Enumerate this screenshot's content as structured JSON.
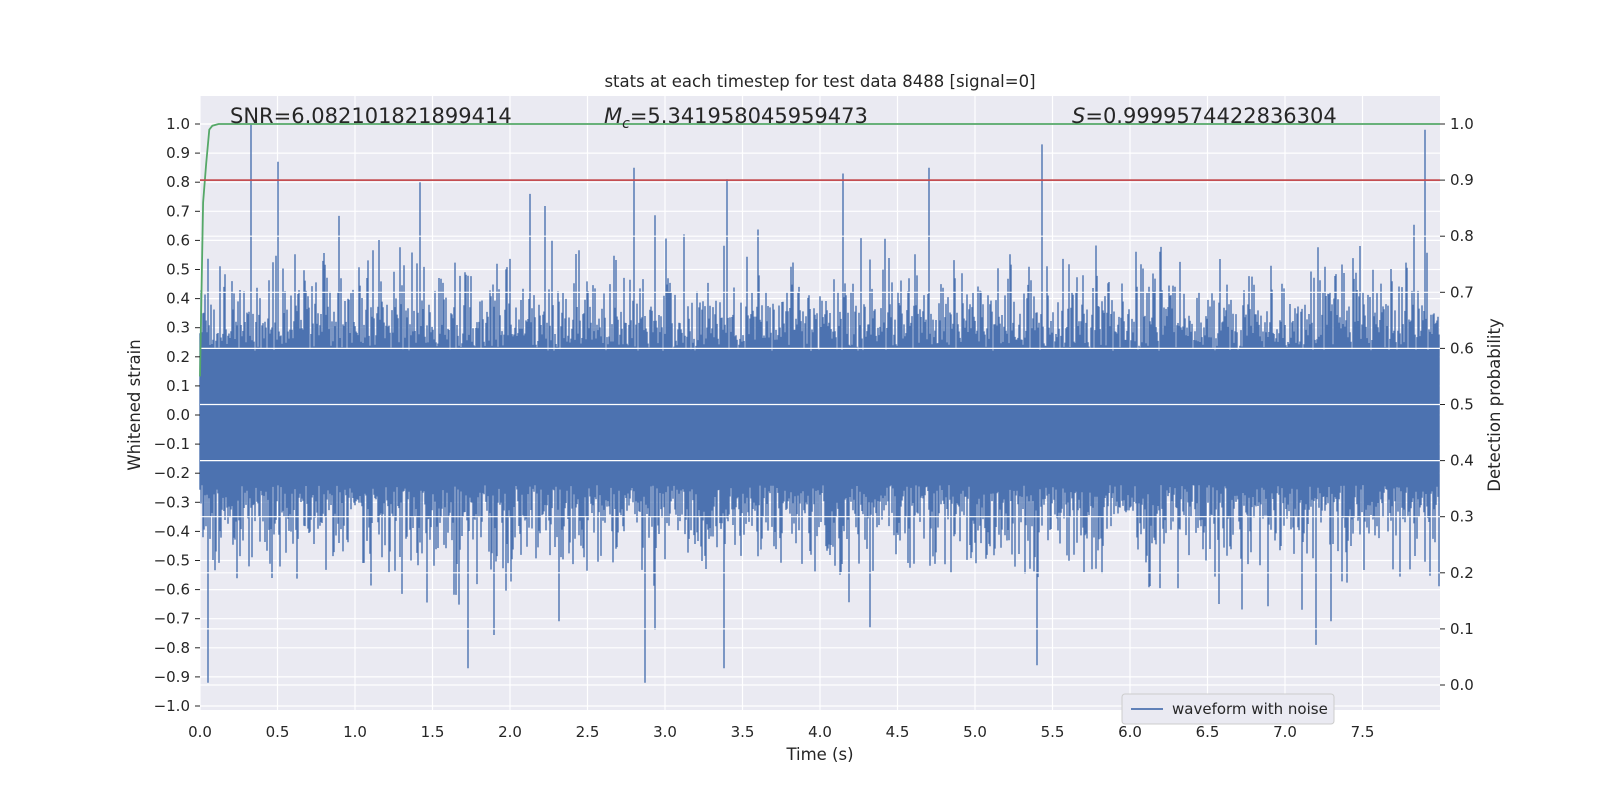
{
  "chart_data": {
    "type": "line",
    "title": "stats at each timestep for test data 8488 [signal=0]",
    "xlabel": "Time (s)",
    "ylabel": "Whitened strain",
    "y2label": "Detection probability",
    "xlim": [
      0.0,
      8.0
    ],
    "ylim": [
      -1.02,
      1.1
    ],
    "y2lim": [
      -0.05,
      1.05
    ],
    "x_ticks": [
      "0.0",
      "0.5",
      "1.0",
      "1.5",
      "2.0",
      "2.5",
      "3.0",
      "3.5",
      "4.0",
      "4.5",
      "5.0",
      "5.5",
      "6.0",
      "6.5",
      "7.0",
      "7.5"
    ],
    "y_ticks": [
      "1.0",
      "0.9",
      "0.8",
      "0.7",
      "0.6",
      "0.5",
      "0.4",
      "0.3",
      "0.2",
      "0.1",
      "0.0",
      "−0.1",
      "−0.2",
      "−0.3",
      "−0.4",
      "−0.5",
      "−0.6",
      "−0.7",
      "−0.8",
      "−0.9",
      "−1.0"
    ],
    "y2_ticks": [
      "1.0",
      "0.9",
      "0.8",
      "0.7",
      "0.6",
      "0.5",
      "0.4",
      "0.3",
      "0.2",
      "0.1",
      "0.0"
    ],
    "grid": true,
    "legend_position": "lower-right",
    "annotations": {
      "snr_label": "SNR=6.082101821899414",
      "mc_label_prefix": "M",
      "mc_label_sub": "c",
      "mc_label_value": "=5.341958045959473",
      "s_label_prefix": "S",
      "s_label_value": "=0.9999574422836304"
    },
    "series": [
      {
        "name": "waveform with noise",
        "axis": "left",
        "color": "#4c72b0",
        "description_peaks": {
          "positive_spikes": [
            [
              0.33,
              1.0
            ],
            [
              0.5,
              0.87
            ],
            [
              1.42,
              0.8
            ],
            [
              2.8,
              0.85
            ],
            [
              3.4,
              0.81
            ],
            [
              4.15,
              0.83
            ],
            [
              4.7,
              0.85
            ],
            [
              5.43,
              0.93
            ],
            [
              7.9,
              0.98
            ]
          ],
          "negative_spikes": [
            [
              0.05,
              -0.92
            ],
            [
              1.73,
              -0.87
            ],
            [
              2.87,
              -0.92
            ],
            [
              3.38,
              -0.87
            ],
            [
              5.4,
              -0.86
            ],
            [
              7.2,
              -0.79
            ]
          ]
        }
      },
      {
        "name": "",
        "axis": "right",
        "color": "#55a868",
        "x": [
          0.0,
          0.02,
          0.04,
          0.06,
          0.08,
          0.12,
          0.2,
          8.0
        ],
        "y": [
          0.55,
          0.86,
          0.93,
          0.99,
          0.997,
          1.0,
          1.0,
          1.0
        ]
      },
      {
        "name": "",
        "axis": "right",
        "color": "#c44e52",
        "x": [
          0.0,
          8.0
        ],
        "y": [
          0.9,
          0.9
        ]
      }
    ]
  },
  "colors": {
    "axes_bg": "#eaeaf2",
    "grid": "#ffffff",
    "waveform": "#4c72b0",
    "probability": "#55a868",
    "threshold": "#c44e52"
  }
}
